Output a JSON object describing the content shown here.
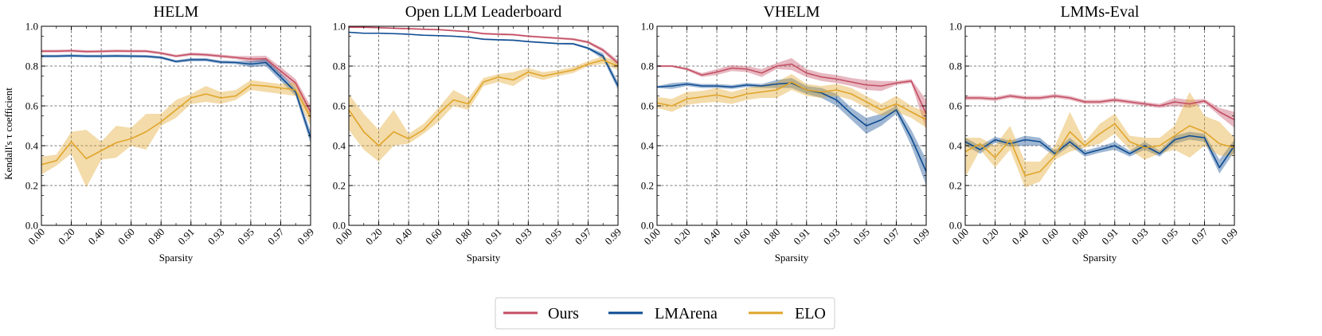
{
  "chart_data": {
    "type": "line",
    "ylabel": "Kendall's τ coefficient",
    "xlabel": "Sparsity",
    "x_ticks": [
      "0.00",
      "0.20",
      "0.40",
      "0.60",
      "0.80",
      "0.91",
      "0.93",
      "0.95",
      "0.97",
      "0.99"
    ],
    "y_ticks": [
      "0.0",
      "0.2",
      "0.4",
      "0.6",
      "0.8",
      "1.0"
    ],
    "ylim": [
      0,
      1
    ],
    "grid": true,
    "legend_position": "bottom-center",
    "series_meta": [
      {
        "name": "Ours",
        "color": "#c44e63"
      },
      {
        "name": "LMArena",
        "color": "#0e4c92"
      },
      {
        "name": "ELO",
        "color": "#e0a52a"
      }
    ],
    "panels": [
      {
        "title": "HELM",
        "series": [
          {
            "name": "Ours",
            "values": [
              0.875,
              0.875,
              0.877,
              0.873,
              0.874,
              0.876,
              0.875,
              0.875,
              0.865,
              0.85,
              0.86,
              0.857,
              0.85,
              0.843,
              0.835,
              0.837,
              0.775,
              0.715,
              0.57
            ],
            "lower": [
              0.868,
              0.868,
              0.87,
              0.866,
              0.867,
              0.869,
              0.868,
              0.868,
              0.858,
              0.843,
              0.852,
              0.849,
              0.842,
              0.835,
              0.82,
              0.82,
              0.755,
              0.695,
              0.54
            ],
            "upper": [
              0.882,
              0.882,
              0.884,
              0.88,
              0.881,
              0.883,
              0.882,
              0.882,
              0.872,
              0.857,
              0.868,
              0.865,
              0.858,
              0.851,
              0.85,
              0.852,
              0.795,
              0.735,
              0.6
            ]
          },
          {
            "name": "LMArena",
            "values": [
              0.85,
              0.85,
              0.852,
              0.85,
              0.85,
              0.851,
              0.85,
              0.849,
              0.843,
              0.823,
              0.832,
              0.832,
              0.82,
              0.818,
              0.81,
              0.818,
              0.745,
              0.67,
              0.44
            ],
            "lower": [
              0.843,
              0.843,
              0.845,
              0.843,
              0.843,
              0.844,
              0.843,
              0.842,
              0.836,
              0.816,
              0.824,
              0.824,
              0.812,
              0.81,
              0.795,
              0.8,
              0.725,
              0.65,
              0.41
            ],
            "upper": [
              0.857,
              0.857,
              0.859,
              0.857,
              0.857,
              0.858,
              0.857,
              0.856,
              0.85,
              0.83,
              0.84,
              0.84,
              0.828,
              0.826,
              0.825,
              0.836,
              0.765,
              0.69,
              0.47
            ]
          },
          {
            "name": "ELO",
            "values": [
              0.305,
              0.325,
              0.42,
              0.335,
              0.375,
              0.415,
              0.435,
              0.47,
              0.52,
              0.58,
              0.64,
              0.66,
              0.64,
              0.65,
              0.705,
              0.7,
              0.69,
              0.68,
              0.54
            ],
            "lower": [
              0.255,
              0.3,
              0.36,
              0.19,
              0.33,
              0.34,
              0.4,
              0.38,
              0.5,
              0.54,
              0.61,
              0.62,
              0.61,
              0.63,
              0.68,
              0.67,
              0.66,
              0.65,
              0.5
            ],
            "upper": [
              0.345,
              0.355,
              0.47,
              0.48,
              0.42,
              0.5,
              0.49,
              0.56,
              0.56,
              0.63,
              0.66,
              0.7,
              0.67,
              0.68,
              0.73,
              0.72,
              0.71,
              0.72,
              0.58
            ]
          }
        ]
      },
      {
        "title": "Open LLM Leaderboard",
        "series": [
          {
            "name": "Ours",
            "values": [
              0.995,
              0.995,
              0.993,
              0.99,
              0.988,
              0.985,
              0.983,
              0.978,
              0.973,
              0.963,
              0.96,
              0.958,
              0.95,
              0.945,
              0.94,
              0.935,
              0.92,
              0.88,
              0.815
            ],
            "lower": [
              0.991,
              0.991,
              0.989,
              0.986,
              0.984,
              0.981,
              0.979,
              0.974,
              0.969,
              0.958,
              0.955,
              0.953,
              0.945,
              0.94,
              0.935,
              0.929,
              0.913,
              0.87,
              0.8
            ],
            "upper": [
              0.999,
              0.999,
              0.997,
              0.994,
              0.992,
              0.989,
              0.987,
              0.982,
              0.977,
              0.968,
              0.965,
              0.963,
              0.955,
              0.95,
              0.945,
              0.941,
              0.927,
              0.89,
              0.83
            ]
          },
          {
            "name": "LMArena",
            "values": [
              0.97,
              0.965,
              0.965,
              0.963,
              0.96,
              0.955,
              0.953,
              0.95,
              0.945,
              0.935,
              0.932,
              0.93,
              0.923,
              0.918,
              0.913,
              0.912,
              0.89,
              0.85,
              0.7
            ],
            "lower": [
              0.967,
              0.962,
              0.962,
              0.96,
              0.957,
              0.952,
              0.95,
              0.947,
              0.942,
              0.931,
              0.928,
              0.926,
              0.919,
              0.914,
              0.909,
              0.907,
              0.884,
              0.835,
              0.68
            ],
            "upper": [
              0.973,
              0.968,
              0.968,
              0.966,
              0.963,
              0.958,
              0.956,
              0.953,
              0.948,
              0.939,
              0.936,
              0.934,
              0.927,
              0.922,
              0.917,
              0.917,
              0.896,
              0.865,
              0.72
            ]
          },
          {
            "name": "ELO",
            "values": [
              0.58,
              0.47,
              0.4,
              0.47,
              0.435,
              0.48,
              0.56,
              0.63,
              0.61,
              0.72,
              0.745,
              0.73,
              0.77,
              0.75,
              0.765,
              0.78,
              0.81,
              0.83,
              0.8
            ],
            "lower": [
              0.48,
              0.38,
              0.32,
              0.4,
              0.41,
              0.46,
              0.52,
              0.6,
              0.58,
              0.7,
              0.72,
              0.7,
              0.75,
              0.73,
              0.75,
              0.765,
              0.8,
              0.81,
              0.78
            ],
            "upper": [
              0.66,
              0.56,
              0.48,
              0.58,
              0.46,
              0.51,
              0.59,
              0.68,
              0.64,
              0.74,
              0.76,
              0.77,
              0.79,
              0.77,
              0.78,
              0.795,
              0.825,
              0.85,
              0.82
            ]
          }
        ]
      },
      {
        "title": "VHELM",
        "series": [
          {
            "name": "Ours",
            "values": [
              0.8,
              0.8,
              0.785,
              0.755,
              0.77,
              0.79,
              0.785,
              0.765,
              0.8,
              0.81,
              0.765,
              0.745,
              0.735,
              0.72,
              0.705,
              0.7,
              0.715,
              0.725,
              0.56
            ],
            "lower": [
              0.795,
              0.795,
              0.778,
              0.745,
              0.755,
              0.775,
              0.77,
              0.745,
              0.785,
              0.78,
              0.745,
              0.725,
              0.715,
              0.7,
              0.68,
              0.675,
              0.705,
              0.715,
              0.48
            ],
            "upper": [
              0.805,
              0.805,
              0.792,
              0.765,
              0.785,
              0.805,
              0.8,
              0.785,
              0.815,
              0.84,
              0.785,
              0.765,
              0.755,
              0.74,
              0.73,
              0.725,
              0.725,
              0.735,
              0.63
            ]
          },
          {
            "name": "LMArena",
            "values": [
              0.695,
              0.7,
              0.71,
              0.7,
              0.7,
              0.695,
              0.705,
              0.7,
              0.71,
              0.715,
              0.68,
              0.665,
              0.63,
              0.56,
              0.5,
              0.53,
              0.58,
              0.44,
              0.27
            ],
            "lower": [
              0.69,
              0.685,
              0.7,
              0.69,
              0.69,
              0.685,
              0.695,
              0.69,
              0.69,
              0.69,
              0.66,
              0.64,
              0.6,
              0.53,
              0.46,
              0.5,
              0.56,
              0.4,
              0.2
            ],
            "upper": [
              0.7,
              0.715,
              0.72,
              0.71,
              0.71,
              0.705,
              0.715,
              0.71,
              0.73,
              0.74,
              0.7,
              0.69,
              0.66,
              0.59,
              0.54,
              0.56,
              0.6,
              0.48,
              0.33
            ]
          },
          {
            "name": "ELO",
            "values": [
              0.615,
              0.6,
              0.635,
              0.645,
              0.655,
              0.64,
              0.66,
              0.67,
              0.68,
              0.72,
              0.68,
              0.67,
              0.68,
              0.66,
              0.62,
              0.58,
              0.61,
              0.57,
              0.53
            ],
            "lower": [
              0.59,
              0.57,
              0.605,
              0.615,
              0.62,
              0.61,
              0.63,
              0.64,
              0.64,
              0.68,
              0.65,
              0.64,
              0.65,
              0.63,
              0.59,
              0.55,
              0.57,
              0.54,
              0.49
            ],
            "upper": [
              0.645,
              0.635,
              0.67,
              0.675,
              0.69,
              0.67,
              0.69,
              0.705,
              0.72,
              0.76,
              0.71,
              0.7,
              0.71,
              0.69,
              0.65,
              0.61,
              0.65,
              0.6,
              0.57
            ]
          }
        ]
      },
      {
        "title": "LMMs-Eval",
        "series": [
          {
            "name": "Ours",
            "values": [
              0.64,
              0.64,
              0.635,
              0.65,
              0.64,
              0.64,
              0.65,
              0.64,
              0.62,
              0.62,
              0.63,
              0.62,
              0.61,
              0.6,
              0.62,
              0.61,
              0.625,
              0.57,
              0.53
            ],
            "lower": [
              0.63,
              0.63,
              0.625,
              0.64,
              0.63,
              0.63,
              0.64,
              0.63,
              0.61,
              0.61,
              0.62,
              0.61,
              0.6,
              0.59,
              0.6,
              0.59,
              0.615,
              0.55,
              0.49
            ],
            "upper": [
              0.65,
              0.65,
              0.645,
              0.66,
              0.65,
              0.65,
              0.66,
              0.65,
              0.63,
              0.63,
              0.64,
              0.63,
              0.62,
              0.61,
              0.64,
              0.63,
              0.635,
              0.59,
              0.57
            ]
          },
          {
            "name": "LMArena",
            "values": [
              0.42,
              0.38,
              0.43,
              0.41,
              0.43,
              0.42,
              0.36,
              0.42,
              0.36,
              0.38,
              0.4,
              0.36,
              0.4,
              0.36,
              0.43,
              0.45,
              0.44,
              0.29,
              0.4
            ],
            "lower": [
              0.4,
              0.36,
              0.415,
              0.395,
              0.4,
              0.4,
              0.345,
              0.4,
              0.345,
              0.365,
              0.38,
              0.345,
              0.38,
              0.345,
              0.41,
              0.43,
              0.42,
              0.26,
              0.37
            ],
            "upper": [
              0.44,
              0.4,
              0.445,
              0.425,
              0.45,
              0.44,
              0.375,
              0.44,
              0.375,
              0.395,
              0.42,
              0.375,
              0.42,
              0.375,
              0.45,
              0.47,
              0.46,
              0.33,
              0.43
            ]
          },
          {
            "name": "ELO",
            "values": [
              0.37,
              0.41,
              0.34,
              0.43,
              0.25,
              0.27,
              0.35,
              0.47,
              0.4,
              0.46,
              0.51,
              0.42,
              0.39,
              0.4,
              0.45,
              0.5,
              0.47,
              0.41,
              0.39
            ],
            "lower": [
              0.24,
              0.38,
              0.29,
              0.38,
              0.19,
              0.22,
              0.33,
              0.37,
              0.39,
              0.41,
              0.46,
              0.38,
              0.33,
              0.36,
              0.38,
              0.34,
              0.4,
              0.35,
              0.35
            ],
            "upper": [
              0.44,
              0.44,
              0.4,
              0.5,
              0.32,
              0.32,
              0.4,
              0.57,
              0.42,
              0.51,
              0.56,
              0.45,
              0.44,
              0.44,
              0.5,
              0.67,
              0.55,
              0.52,
              0.44
            ]
          }
        ]
      }
    ]
  }
}
